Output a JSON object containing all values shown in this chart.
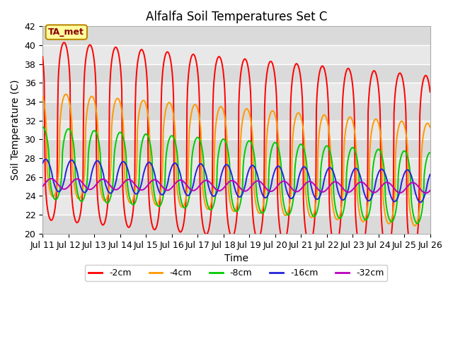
{
  "title": "Alfalfa Soil Temperatures Set C",
  "xlabel": "Time",
  "ylabel": "Soil Temperature (C)",
  "ylim": [
    20,
    42
  ],
  "x_tick_labels": [
    "Jul 11",
    "Jul 12",
    "Jul 13",
    "Jul 14",
    "Jul 15",
    "Jul 16",
    "Jul 17",
    "Jul 18",
    "Jul 19",
    "Jul 20",
    "Jul 21",
    "Jul 22",
    "Jul 23",
    "Jul 24",
    "Jul 25",
    "Jul 26"
  ],
  "annotation_text": "TA_met",
  "annotation_box_facecolor": "#ffffa0",
  "annotation_text_color": "#880000",
  "annotation_border_color": "#bb8800",
  "series_order": [
    "-2cm",
    "-4cm",
    "-8cm",
    "-16cm",
    "-32cm"
  ],
  "colors": {
    "-2cm": "#ff0000",
    "-4cm": "#ff9900",
    "-8cm": "#00cc00",
    "-16cm": "#2222dd",
    "-32cm": "#bb00bb"
  },
  "amplitude": {
    "-2cm": 9.5,
    "-4cm": 5.5,
    "-8cm": 3.8,
    "-16cm": 1.7,
    "-32cm": 0.55
  },
  "mean_start": {
    "-2cm": 31.0,
    "-4cm": 29.5,
    "-8cm": 27.5,
    "-16cm": 26.2,
    "-32cm": 25.3
  },
  "trend": {
    "-2cm": -0.25,
    "-4cm": -0.22,
    "-8cm": -0.18,
    "-16cm": -0.08,
    "-32cm": -0.03
  },
  "phase_shift_days": {
    "-2cm": 0.0,
    "-4cm": 0.07,
    "-8cm": 0.17,
    "-16cm": 0.29,
    "-32cm": 0.5
  },
  "sharpness": {
    "-2cm": 3.5,
    "-4cm": 2.5,
    "-8cm": 2.0,
    "-16cm": 1.2,
    "-32cm": 1.0
  },
  "bg_color": "#e8e8e8",
  "grid_stripe_color": "#f0f0f0",
  "linewidth": 1.4
}
